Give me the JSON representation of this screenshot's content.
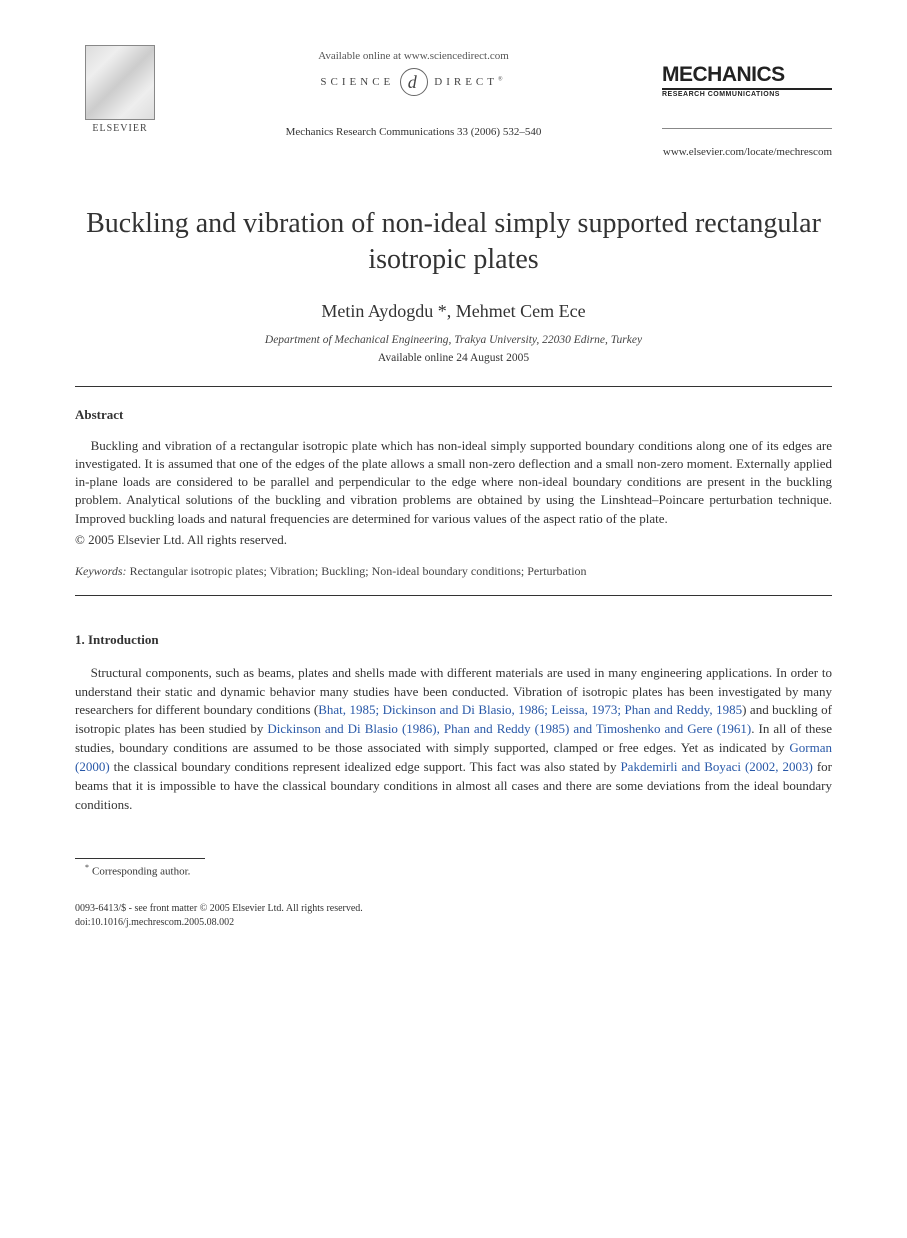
{
  "header": {
    "publisher_name": "ELSEVIER",
    "available_text": "Available online at www.sciencedirect.com",
    "sd_left": "SCIENCE",
    "sd_right": "DIRECT",
    "sd_reg": "®",
    "citation": "Mechanics Research Communications 33 (2006) 532–540",
    "journal_title": "MECHANICS",
    "journal_sub": "RESEARCH COMMUNICATIONS",
    "journal_url": "www.elsevier.com/locate/mechrescom"
  },
  "title": "Buckling and vibration of non-ideal simply supported rectangular isotropic plates",
  "authors_line": "Metin Aydogdu *, Mehmet Cem Ece",
  "affiliation": "Department of Mechanical Engineering, Trakya University, 22030 Edirne, Turkey",
  "online_date": "Available online 24 August 2005",
  "abstract": {
    "label": "Abstract",
    "body": "Buckling and vibration of a rectangular isotropic plate which has non-ideal simply supported boundary conditions along one of its edges are investigated. It is assumed that one of the edges of the plate allows a small non-zero deflection and a small non-zero moment. Externally applied in-plane loads are considered to be parallel and perpendicular to the edge where non-ideal boundary conditions are present in the buckling problem. Analytical solutions of the buckling and vibration problems are obtained by using the Linshtead–Poincare perturbation technique. Improved buckling loads and natural frequencies are determined for various values of the aspect ratio of the plate.",
    "copyright": "© 2005 Elsevier Ltd. All rights reserved."
  },
  "keywords": {
    "label": "Keywords:",
    "value": "Rectangular isotropic plates; Vibration; Buckling; Non-ideal boundary conditions; Perturbation"
  },
  "introduction": {
    "heading": "1. Introduction",
    "text_pre": "Structural components, such as beams, plates and shells made with different materials are used in many engineering applications. In order to understand their static and dynamic behavior many studies have been conducted. Vibration of isotropic plates has been investigated by many researchers for different boundary conditions (",
    "ref1": "Bhat, 1985; Dickinson and Di Blasio, 1986; Leissa, 1973; Phan and Reddy, 1985",
    "text_mid1": ") and buckling of isotropic plates has been studied by ",
    "ref2": "Dickinson and Di Blasio (1986), Phan and Reddy (1985) and Timoshenko and Gere (1961)",
    "text_mid2": ". In all of these studies, boundary conditions are assumed to be those associated with simply supported, clamped or free edges. Yet as indicated by ",
    "ref3": "Gorman (2000)",
    "text_mid3": " the classical boundary conditions represent idealized edge support. This fact was also stated by ",
    "ref4": "Pakdemirli and Boyaci (2002, 2003)",
    "text_post": " for beams that it is impossible to have the classical boundary conditions in almost all cases and there are some deviations from the ideal boundary conditions."
  },
  "footnote": "Corresponding author.",
  "back_matter": {
    "line1": "0093-6413/$ - see front matter © 2005 Elsevier Ltd. All rights reserved.",
    "line2": "doi:10.1016/j.mechrescom.2005.08.002"
  },
  "colors": {
    "text": "#333333",
    "link": "#2858a8",
    "background": "#ffffff"
  },
  "fonts": {
    "body_family": "Georgia, Times New Roman, serif",
    "title_size_pt": 21,
    "body_size_pt": 10,
    "small_size_pt": 8
  }
}
